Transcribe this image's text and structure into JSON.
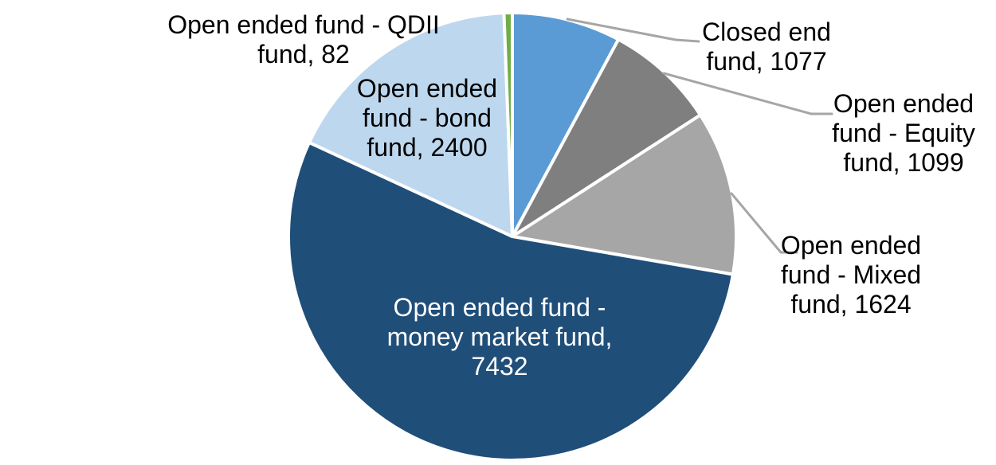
{
  "chart_data": {
    "type": "pie",
    "title": "",
    "legend": "none",
    "direction": "clockwise",
    "start_angle_deg": 0,
    "leader_line_color": "#A6A6A6",
    "label_text_color": "#000000",
    "slices": [
      {
        "id": "closed-end-fund",
        "name": "Closed end fund",
        "value": 1077,
        "color": "#5B9BD5",
        "label_color": "#000000",
        "label_lines": [
          "Closed end",
          "fund, 1077"
        ]
      },
      {
        "id": "open-ended-equity-fund",
        "name": "Open ended fund - Equity fund",
        "value": 1099,
        "color": "#7F7F7F",
        "label_color": "#000000",
        "label_lines": [
          "Open ended",
          "fund - Equity",
          "fund, 1099"
        ]
      },
      {
        "id": "open-ended-mixed-fund",
        "name": "Open ended fund - Mixed fund",
        "value": 1624,
        "color": "#A6A6A6",
        "label_color": "#000000",
        "label_lines": [
          "Open ended",
          "fund - Mixed",
          "fund, 1624"
        ]
      },
      {
        "id": "open-ended-money-market-fund",
        "name": "Open ended fund - money market fund",
        "value": 7432,
        "color": "#1F4E79",
        "label_color": "#FFFFFF",
        "label_lines": [
          "Open ended fund -",
          "money market fund,",
          "7432"
        ]
      },
      {
        "id": "open-ended-bond-fund",
        "name": "Open ended fund - bond fund",
        "value": 2400,
        "color": "#BDD7EE",
        "label_color": "#000000",
        "label_lines": [
          "Open ended",
          "fund - bond",
          "fund, 2400"
        ]
      },
      {
        "id": "open-ended-qdii-fund",
        "name": "Open ended fund - QDII fund",
        "value": 82,
        "color": "#70AD47",
        "label_color": "#000000",
        "label_lines": [
          "Open ended fund - QDII",
          "fund, 82"
        ]
      }
    ]
  }
}
